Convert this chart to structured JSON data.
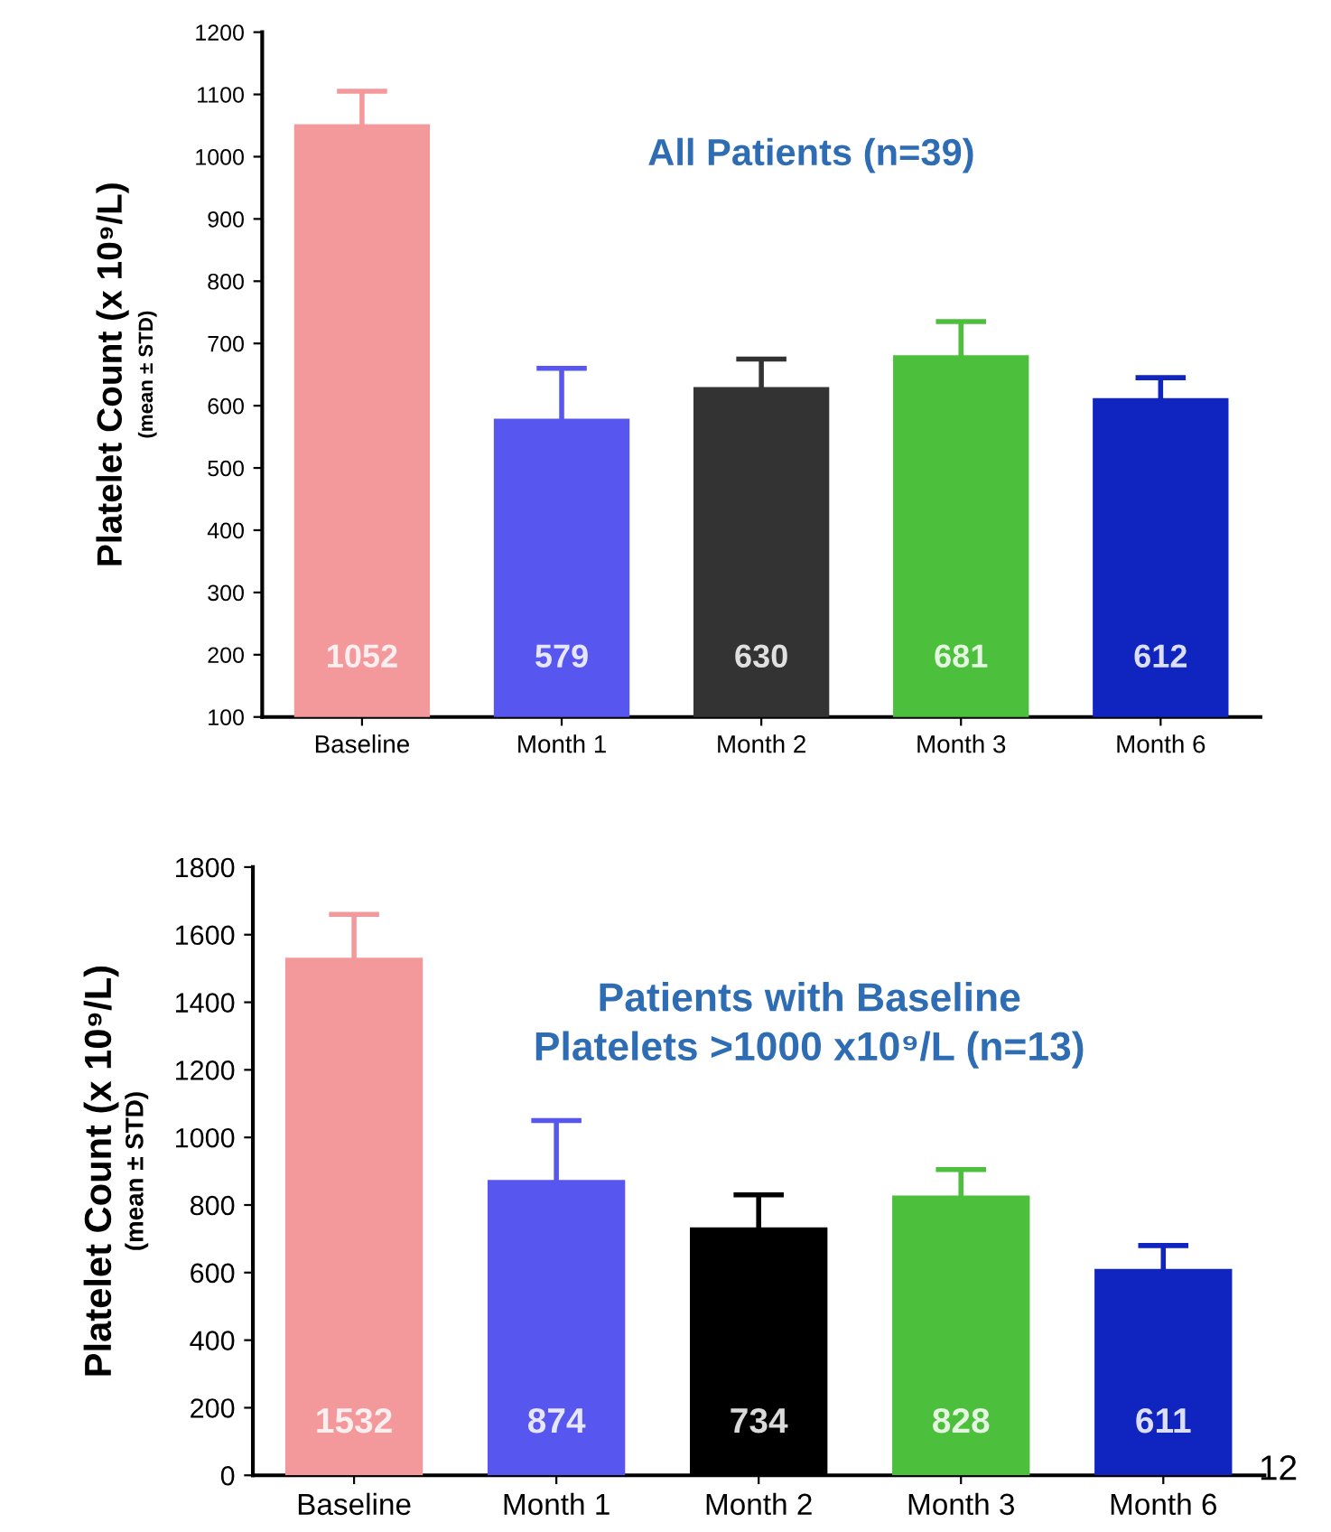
{
  "chart_data": [
    {
      "type": "bar",
      "title": "All Patients (n=39)",
      "ylabel": "Platelet Count (x 10⁹/L)\n(mean ± STD)",
      "categories": [
        "Baseline",
        "Month 1",
        "Month 2",
        "Month 3",
        "Month 6"
      ],
      "values": [
        1052,
        579,
        630,
        681,
        612
      ],
      "errors": [
        53,
        81,
        45,
        54,
        33
      ],
      "colors": [
        "#f4999b",
        "#5757f0",
        "#333333",
        "#4cc03c",
        "#1024c0"
      ],
      "data_labels": true,
      "ylim": [
        100,
        1200
      ],
      "yticks": [
        100,
        200,
        300,
        400,
        500,
        600,
        700,
        800,
        900,
        1000,
        1100,
        1200
      ],
      "grid": false,
      "legend": false
    },
    {
      "type": "bar",
      "title": "Patients with Baseline\nPlatelets >1000 x10⁹/L (n=13)",
      "ylabel": "Platelet Count (x 10⁹/L)\n(mean ± STD)",
      "categories": [
        "Baseline",
        "Month 1",
        "Month 2",
        "Month 3",
        "Month 6"
      ],
      "values": [
        1532,
        874,
        734,
        828,
        611
      ],
      "errors": [
        128,
        176,
        96,
        77,
        69
      ],
      "colors": [
        "#f4999b",
        "#5757f0",
        "#000000",
        "#4cc03c",
        "#1024c0"
      ],
      "data_labels": true,
      "ylim": [
        0,
        1800
      ],
      "yticks": [
        0,
        200,
        400,
        600,
        800,
        1000,
        1200,
        1400,
        1600,
        1800
      ],
      "grid": false,
      "legend": false,
      "annotations": [
        "12"
      ]
    }
  ]
}
